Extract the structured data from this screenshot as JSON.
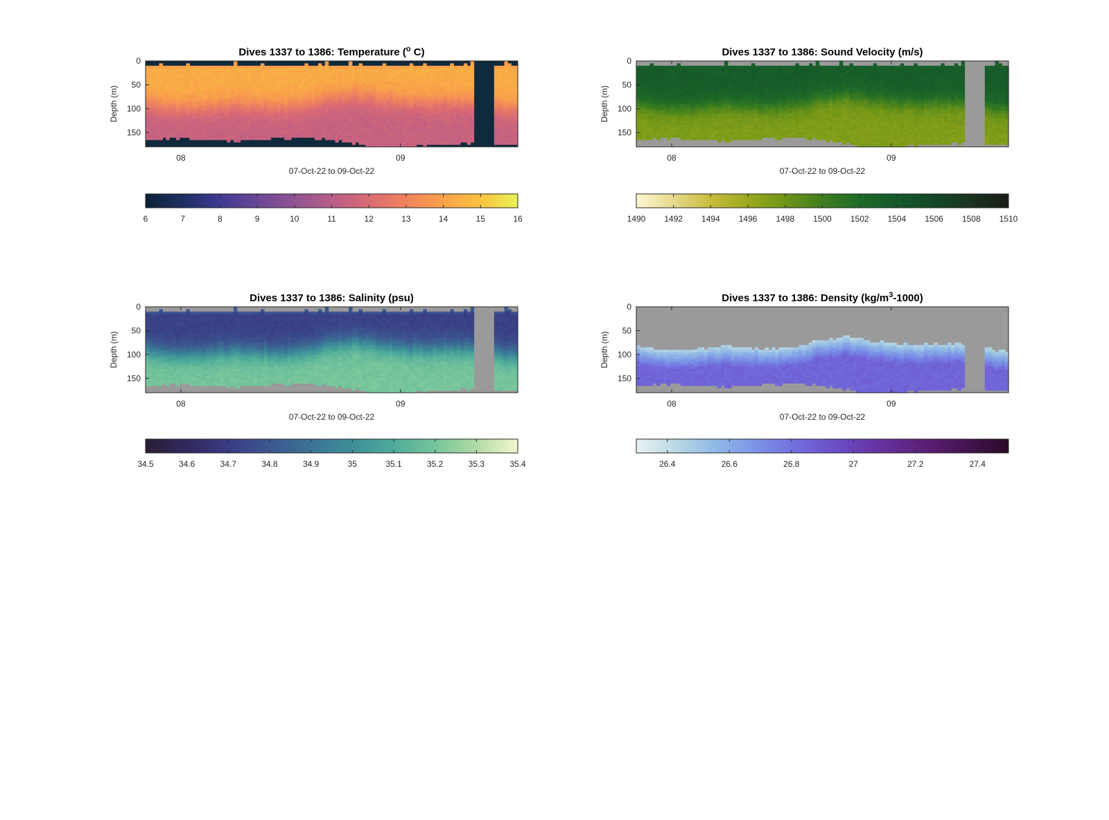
{
  "chart_data": [
    {
      "type": "heatmap",
      "variable": "temperature",
      "title": "Dives 1337 to 1386: Temperature (",
      "title_sup": "o",
      "title_tail": " C)",
      "xlabel": "07-Oct-22 to 09-Oct-22",
      "ylabel": "Depth (m)",
      "x_ticks": [
        "08",
        "09"
      ],
      "y_ticks": [
        "0",
        "50",
        "100",
        "150"
      ],
      "ylim": [
        0,
        180
      ],
      "missing_color": "#0e2a3c",
      "colorbar": {
        "ticks": [
          "6",
          "7",
          "8",
          "9",
          "10",
          "11",
          "12",
          "13",
          "14",
          "15",
          "16"
        ],
        "range": [
          6,
          16
        ],
        "colors": [
          "#0b2235",
          "#1f2f63",
          "#3f3a93",
          "#694796",
          "#905493",
          "#b85d88",
          "#db6b73",
          "#f0835d",
          "#f9a24a",
          "#fac23f",
          "#e8f256"
        ]
      },
      "layers": {
        "surface": 14.3,
        "mid": 12.9,
        "deep": 11.4
      }
    },
    {
      "type": "heatmap",
      "variable": "sound_velocity",
      "title": "Dives 1337 to 1386: Sound Velocity (m/s)",
      "xlabel": "07-Oct-22 to 09-Oct-22",
      "ylabel": "Depth (m)",
      "x_ticks": [
        "08",
        "09"
      ],
      "y_ticks": [
        "0",
        "50",
        "100",
        "150"
      ],
      "ylim": [
        0,
        180
      ],
      "missing_color": "#9a9a9a",
      "colorbar": {
        "ticks": [
          "1490",
          "1492",
          "1494",
          "1496",
          "1498",
          "1500",
          "1502",
          "1504",
          "1506",
          "1508",
          "1510"
        ],
        "range": [
          1490,
          1510
        ],
        "colors": [
          "#fdf7d2",
          "#e6d98a",
          "#c7bc3d",
          "#9aa91d",
          "#6f9518",
          "#3f7e1f",
          "#1e6a27",
          "#15582a",
          "#134726",
          "#1a3220",
          "#1a1d16"
        ]
      },
      "layers": {
        "surface": 1503.6,
        "mid": 1502.2,
        "deep": 1497.2
      }
    },
    {
      "type": "heatmap",
      "variable": "salinity",
      "title": "Dives 1337 to 1386: Salinity (psu)",
      "xlabel": "07-Oct-22 to 09-Oct-22",
      "ylabel": "Depth (m)",
      "x_ticks": [
        "08",
        "09"
      ],
      "y_ticks": [
        "0",
        "50",
        "100",
        "150"
      ],
      "ylim": [
        0,
        180
      ],
      "missing_color": "#9a9a9a",
      "colorbar": {
        "ticks": [
          "34.5",
          "34.6",
          "34.7",
          "34.8",
          "34.9",
          "35",
          "35.1",
          "35.2",
          "35.3",
          "35.4"
        ],
        "range": [
          34.5,
          35.4
        ],
        "colors": [
          "#2a1e34",
          "#32295e",
          "#3a3b83",
          "#3c5790",
          "#3b7394",
          "#3f8f98",
          "#4fab9a",
          "#76c59b",
          "#b0dba6",
          "#f4f6cd"
        ]
      },
      "layers": {
        "surface": 34.72,
        "mid": 35.0,
        "deep": 35.2
      }
    },
    {
      "type": "heatmap",
      "variable": "density",
      "title": "Dives 1337 to 1386: Density (kg/m",
      "title_sup": "3",
      "title_tail": "-1000)",
      "xlabel": "07-Oct-22 to 09-Oct-22",
      "ylabel": "Depth (m)",
      "x_ticks": [
        "08",
        "09"
      ],
      "y_ticks": [
        "0",
        "50",
        "100",
        "150"
      ],
      "ylim": [
        0,
        180
      ],
      "missing_color": "#9a9a9a",
      "colorbar": {
        "ticks": [
          "26.4",
          "26.6",
          "26.8",
          "27",
          "27.2",
          "27.4"
        ],
        "range": [
          26.3,
          27.5
        ],
        "colors": [
          "#e9f1f2",
          "#b7d8e4",
          "#8eb6e6",
          "#7a8fe6",
          "#7169db",
          "#6b48bf",
          "#65309b",
          "#5a1f74",
          "#451450",
          "#2a0b26"
        ]
      },
      "layers": {
        "surface": 26.45,
        "mid": 26.7,
        "deep": 26.85
      }
    }
  ]
}
